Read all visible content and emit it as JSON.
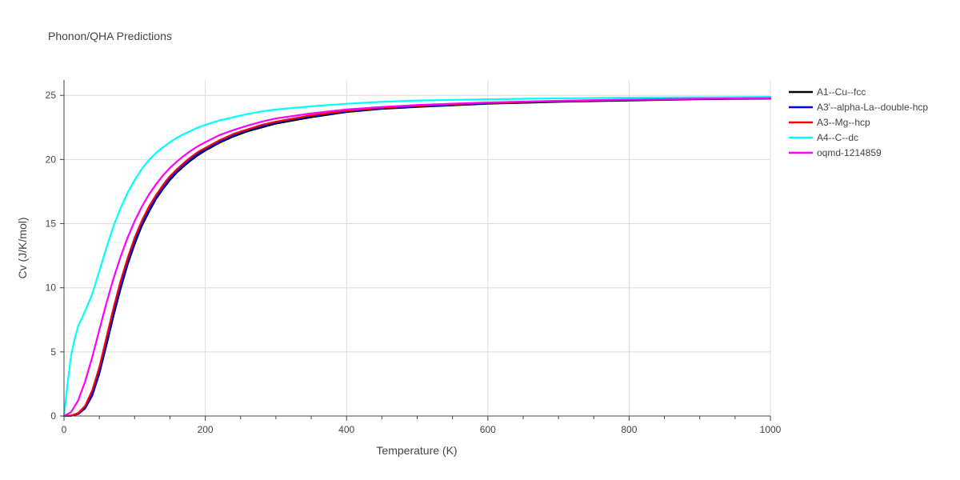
{
  "chart_data": {
    "type": "line",
    "title": "Phonon/QHA Predictions",
    "xlabel": "Temperature (K)",
    "ylabel": "Cv (J/K/mol)",
    "xlim": [
      0,
      1000
    ],
    "ylim": [
      0,
      26.2
    ],
    "x_ticks": [
      0,
      200,
      400,
      600,
      800,
      1000
    ],
    "y_ticks": [
      0,
      5,
      10,
      15,
      20,
      25
    ],
    "x_tick_labels": [
      "0",
      "200",
      "400",
      "600",
      "800",
      "1000"
    ],
    "y_tick_labels": [
      "0",
      "5",
      "10",
      "15",
      "20",
      "25"
    ],
    "grid": true,
    "legend_position": "right",
    "series": [
      {
        "name": "A1--Cu--fcc",
        "color": "#000000",
        "x": [
          0,
          10,
          20,
          30,
          40,
          50,
          60,
          70,
          80,
          90,
          100,
          110,
          120,
          130,
          140,
          150,
          160,
          170,
          180,
          190,
          200,
          220,
          240,
          260,
          280,
          300,
          350,
          400,
          450,
          500,
          600,
          700,
          800,
          900,
          1000
        ],
        "y": [
          0,
          0.02,
          0.15,
          0.6,
          1.6,
          3.3,
          5.5,
          7.8,
          9.9,
          11.8,
          13.4,
          14.8,
          15.9,
          16.9,
          17.7,
          18.4,
          19.0,
          19.5,
          19.95,
          20.35,
          20.7,
          21.3,
          21.8,
          22.2,
          22.5,
          22.8,
          23.3,
          23.7,
          23.95,
          24.1,
          24.35,
          24.5,
          24.6,
          24.7,
          24.75
        ]
      },
      {
        "name": "A3'--alpha-La--double-hcp",
        "color": "#0000ff",
        "x": [
          0,
          10,
          20,
          30,
          40,
          50,
          60,
          70,
          80,
          90,
          100,
          110,
          120,
          130,
          140,
          150,
          160,
          170,
          180,
          190,
          200,
          220,
          240,
          260,
          280,
          300,
          350,
          400,
          450,
          500,
          600,
          700,
          800,
          900,
          1000
        ],
        "y": [
          0,
          0.02,
          0.17,
          0.65,
          1.7,
          3.45,
          5.7,
          8.0,
          10.1,
          12.0,
          13.6,
          14.95,
          16.05,
          17.0,
          17.8,
          18.5,
          19.1,
          19.6,
          20.05,
          20.45,
          20.8,
          21.4,
          21.9,
          22.3,
          22.6,
          22.9,
          23.4,
          23.75,
          24.0,
          24.15,
          24.4,
          24.55,
          24.65,
          24.72,
          24.77
        ]
      },
      {
        "name": "A3--Mg--hcp",
        "color": "#ff0000",
        "x": [
          0,
          10,
          20,
          30,
          40,
          50,
          60,
          70,
          80,
          90,
          100,
          110,
          120,
          130,
          140,
          150,
          160,
          170,
          180,
          190,
          200,
          220,
          240,
          260,
          280,
          300,
          350,
          400,
          450,
          500,
          600,
          700,
          800,
          900,
          1000
        ],
        "y": [
          0,
          0.03,
          0.22,
          0.8,
          2.0,
          3.8,
          6.1,
          8.4,
          10.5,
          12.3,
          13.9,
          15.2,
          16.3,
          17.2,
          18.0,
          18.7,
          19.25,
          19.75,
          20.2,
          20.6,
          20.9,
          21.5,
          22.0,
          22.35,
          22.7,
          22.95,
          23.45,
          23.8,
          24.05,
          24.2,
          24.42,
          24.56,
          24.66,
          24.73,
          24.78
        ]
      },
      {
        "name": "A4--C--dc",
        "color": "#00ffff",
        "x": [
          0,
          5,
          10,
          15,
          20,
          30,
          40,
          50,
          60,
          70,
          80,
          90,
          100,
          110,
          120,
          130,
          140,
          150,
          160,
          170,
          180,
          190,
          200,
          220,
          240,
          260,
          280,
          300,
          350,
          400,
          450,
          500,
          600,
          700,
          800,
          900,
          1000
        ],
        "y": [
          0,
          2.5,
          4.7,
          6.0,
          7.0,
          8.2,
          9.5,
          11.3,
          13.1,
          14.8,
          16.2,
          17.4,
          18.4,
          19.25,
          19.95,
          20.5,
          20.95,
          21.35,
          21.7,
          22.0,
          22.25,
          22.5,
          22.7,
          23.05,
          23.3,
          23.55,
          23.75,
          23.9,
          24.15,
          24.35,
          24.5,
          24.6,
          24.7,
          24.77,
          24.82,
          24.85,
          24.88
        ]
      },
      {
        "name": "oqmd-1214859",
        "color": "#ff00ff",
        "x": [
          0,
          10,
          20,
          30,
          40,
          50,
          60,
          70,
          80,
          90,
          100,
          110,
          120,
          130,
          140,
          150,
          160,
          170,
          180,
          190,
          200,
          220,
          240,
          260,
          280,
          300,
          350,
          400,
          450,
          500,
          600,
          700,
          800,
          900,
          1000
        ],
        "y": [
          0,
          0.3,
          1.2,
          2.7,
          4.6,
          6.7,
          8.8,
          10.7,
          12.4,
          13.9,
          15.2,
          16.3,
          17.25,
          18.05,
          18.75,
          19.35,
          19.85,
          20.3,
          20.7,
          21.05,
          21.35,
          21.9,
          22.3,
          22.65,
          22.95,
          23.2,
          23.6,
          23.9,
          24.1,
          24.25,
          24.45,
          24.58,
          24.67,
          24.74,
          24.79
        ]
      }
    ]
  }
}
